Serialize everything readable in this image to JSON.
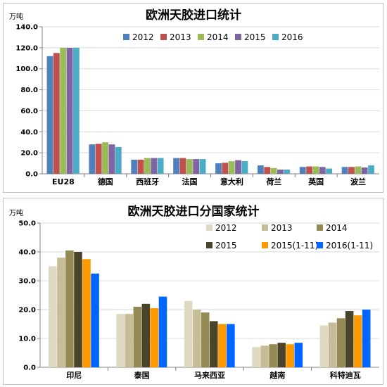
{
  "chart_data": [
    {
      "type": "bar",
      "title": "欧洲天胶进口统计",
      "ylabel": "万吨",
      "ylim": [
        0,
        140
      ],
      "yticks": [
        "0.0",
        "20.0",
        "40.0",
        "60.0",
        "80.0",
        "100.0",
        "120.0",
        "140.0"
      ],
      "categories": [
        "EU28",
        "德国",
        "西班牙",
        "法国",
        "意大利",
        "荷兰",
        "英国",
        "波兰"
      ],
      "legend_position": "top",
      "grid": true,
      "series": [
        {
          "name": "2012",
          "color": "#4f81bd",
          "values": [
            112,
            28,
            13.5,
            15,
            10,
            8,
            6.5,
            6.5
          ]
        },
        {
          "name": "2013",
          "color": "#c0504d",
          "values": [
            115,
            28.5,
            13.5,
            15,
            10.5,
            6.5,
            7,
            6.5
          ]
        },
        {
          "name": "2014",
          "color": "#9bbb59",
          "values": [
            120,
            30,
            15,
            14,
            12,
            5.5,
            7,
            7
          ]
        },
        {
          "name": "2015",
          "color": "#8064a2",
          "values": [
            120,
            28,
            15,
            14,
            13,
            4,
            6.5,
            6
          ]
        },
        {
          "name": "2016",
          "color": "#4bacc6",
          "values": [
            120,
            25.5,
            15,
            14,
            12,
            4,
            5,
            8
          ]
        }
      ]
    },
    {
      "type": "bar",
      "title": "欧洲天胶进口分国家统计",
      "ylabel": "万吨",
      "ylim": [
        0,
        50
      ],
      "yticks": [
        "0.0",
        "10.0",
        "20.0",
        "30.0",
        "40.0",
        "50.0"
      ],
      "categories": [
        "印尼",
        "泰国",
        "马来西亚",
        "越南",
        "科特迪瓦"
      ],
      "legend_position": "top-right",
      "grid": true,
      "series": [
        {
          "name": "2012",
          "color": "#ddd9c3",
          "values": [
            35,
            18.5,
            23,
            7,
            14.5
          ]
        },
        {
          "name": "2013",
          "color": "#c4bd97",
          "values": [
            38,
            18.5,
            20,
            7.5,
            15.5
          ]
        },
        {
          "name": "2014",
          "color": "#948a54",
          "values": [
            40.5,
            21,
            19,
            8,
            17
          ]
        },
        {
          "name": "2015",
          "color": "#4a452a",
          "values": [
            40,
            22,
            16,
            8.5,
            19.5
          ]
        },
        {
          "name": "2015(1-11)",
          "color": "#ff9900",
          "values": [
            37.5,
            20.5,
            15,
            8,
            18
          ]
        },
        {
          "name": "2016(1-11)",
          "color": "#0066ff",
          "values": [
            32.5,
            24.5,
            15,
            8.5,
            20
          ]
        }
      ]
    }
  ]
}
